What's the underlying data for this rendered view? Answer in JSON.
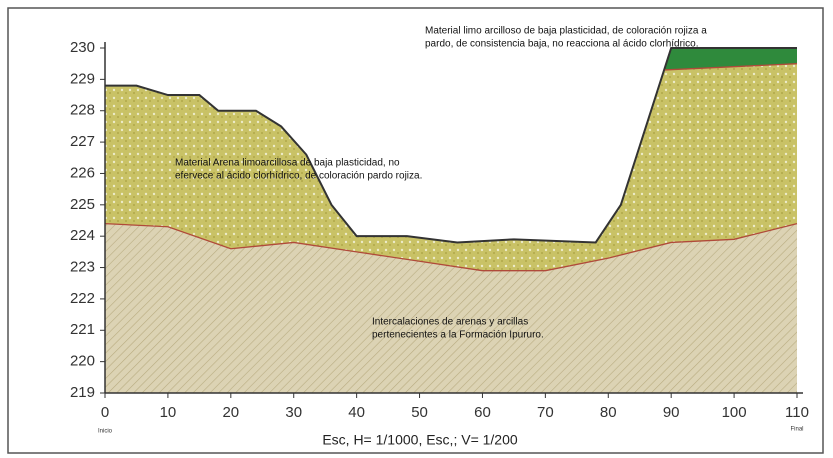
{
  "chart_data": {
    "type": "profile",
    "x_label": "Esc, H= 1/1000, Esc,; V= 1/200",
    "start_label": "Inicio",
    "end_label": "Final",
    "xlim": [
      0,
      110
    ],
    "xticks": [
      0,
      10,
      20,
      30,
      40,
      50,
      60,
      70,
      80,
      90,
      100,
      110
    ],
    "ylim": [
      219,
      230
    ],
    "yticks": [
      219,
      220,
      221,
      222,
      223,
      224,
      225,
      226,
      227,
      228,
      229,
      230
    ],
    "surface": {
      "color": "#333333",
      "x": [
        0,
        5,
        10,
        15,
        18,
        24,
        28,
        32,
        36,
        40,
        48,
        56,
        65,
        78,
        82,
        90,
        110
      ],
      "values": [
        228.8,
        228.8,
        228.5,
        228.5,
        228.0,
        228.0,
        227.5,
        226.6,
        225.0,
        224.0,
        224.0,
        223.8,
        223.9,
        223.8,
        225.0,
        230,
        230
      ]
    },
    "clay_base": {
      "color": "#b04a3a",
      "fill": "#2f8a3c",
      "x": [
        89,
        110
      ],
      "values": [
        229.3,
        229.5
      ]
    },
    "sand_base": {
      "color": "#b04a3a",
      "fill": "#c9c266",
      "x": [
        0,
        10,
        20,
        30,
        40,
        50,
        60,
        70,
        80,
        90,
        100,
        110
      ],
      "values": [
        224.4,
        224.3,
        223.6,
        223.8,
        223.5,
        223.2,
        222.9,
        222.9,
        223.3,
        223.8,
        223.9,
        224.4
      ]
    },
    "bedrock_fill": "#dcd3b4",
    "annotations": [
      {
        "lines": [
          "Material limo arcilloso de baja plasticidad, de coloración rojiza a",
          "pardo, de consistencia baja, no reacciona al ácido clorhídrico."
        ]
      },
      {
        "lines": [
          "Material Arena limoarcillosa de baja plasticidad, no",
          "efervece al ácido clorhídrico, de coloración pardo rojiza."
        ]
      },
      {
        "lines": [
          "Intercalaciones de arenas y arcillas",
          "pertenecientes a la Formación Ipururo."
        ]
      }
    ]
  }
}
